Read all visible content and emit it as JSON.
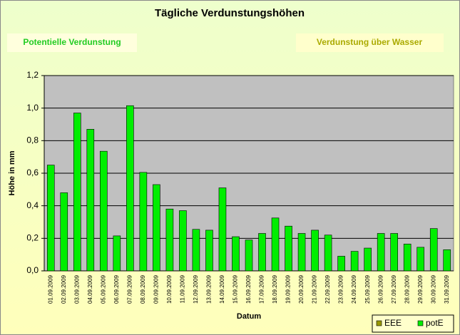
{
  "buttons": [
    "Potentielle Verdunstung",
    "Verdunstung über Wasser"
  ],
  "chart_data": {
    "type": "bar",
    "title": "Tägliche Verdunstungshöhen",
    "x_label": "Datum",
    "y_label": "Höhe in mm",
    "categories": [
      "01.09.2009",
      "02.09.2009",
      "03.09.2009",
      "04.09.2009",
      "05.09.2009",
      "06.09.2009",
      "07.09.2009",
      "08.09.2009",
      "09.09.2009",
      "10.09.2009",
      "11.09.2009",
      "12.09.2009",
      "13.09.2009",
      "14.09.2009",
      "15.09.2009",
      "16.09.2009",
      "17.09.2009",
      "18.09.2009",
      "19.09.2009",
      "20.09.2009",
      "21.09.2009",
      "22.09.2009",
      "23.09.2009",
      "24.09.2009",
      "25.09.2009",
      "26.09.2009",
      "27.09.2009",
      "28.09.2009",
      "29.09.2009",
      "30.09.2009",
      "31.09.2009"
    ],
    "series": [
      {
        "name": "EEE",
        "color": "#999900",
        "values": [
          null,
          null,
          null,
          null,
          null,
          null,
          null,
          null,
          null,
          null,
          null,
          null,
          null,
          null,
          null,
          null,
          null,
          null,
          null,
          null,
          null,
          null,
          null,
          null,
          null,
          null,
          null,
          null,
          null,
          null,
          null
        ]
      },
      {
        "name": "potE",
        "color": "#00ee00",
        "values": [
          0.65,
          0.48,
          0.97,
          0.87,
          0.735,
          0.215,
          1.015,
          0.605,
          0.53,
          0.38,
          0.37,
          0.255,
          0.25,
          0.51,
          0.21,
          0.19,
          0.23,
          0.325,
          0.275,
          0.23,
          0.25,
          0.22,
          0.09,
          0.12,
          0.14,
          0.23,
          0.23,
          0.165,
          0.145,
          0.26,
          0.13
        ]
      }
    ],
    "ylim": [
      0,
      1.2
    ],
    "yticks": [
      {
        "value": 0,
        "label": "0,0"
      },
      {
        "value": 0.2,
        "label": "0,2"
      },
      {
        "value": 0.4,
        "label": "0,4"
      },
      {
        "value": 0.6,
        "label": "0,6"
      },
      {
        "value": 0.8,
        "label": "0,8"
      },
      {
        "value": 1.0,
        "label": "1,0"
      },
      {
        "value": 1.2,
        "label": "1,2"
      }
    ],
    "grid": true,
    "legend": "bottom-right"
  }
}
